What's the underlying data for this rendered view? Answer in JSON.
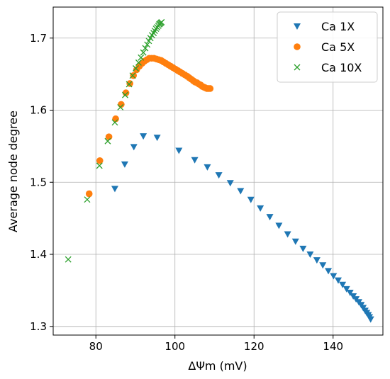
{
  "chart_data": {
    "type": "scatter",
    "title": "",
    "xlabel": "ΔΨm (mV)",
    "ylabel": "Average node degree",
    "xlim": [
      69.2,
      152.6
    ],
    "ylim": [
      1.288,
      1.743
    ],
    "x_ticks": [
      80,
      100,
      120,
      140
    ],
    "y_ticks": [
      1.3,
      1.4,
      1.5,
      1.6,
      1.7
    ],
    "x_tick_labels": [
      "80",
      "100",
      "120",
      "140"
    ],
    "y_tick_labels": [
      "1.3",
      "1.4",
      "1.5",
      "1.6",
      "1.7"
    ],
    "grid": true,
    "legend_position": "top-right",
    "series": [
      {
        "name": "Ca 1X",
        "marker": "triangle-down",
        "color": "#1f77b4",
        "x": [
          84.8,
          87.3,
          89.6,
          92.0,
          95.5,
          101.0,
          105.0,
          108.2,
          111.1,
          114.0,
          116.6,
          119.2,
          121.6,
          124.0,
          126.3,
          128.5,
          130.5,
          132.4,
          134.2,
          135.9,
          137.4,
          138.8,
          140.1,
          141.3,
          142.4,
          143.4,
          144.3,
          145.1,
          145.8,
          146.5,
          147.1,
          147.6,
          148.1,
          148.5,
          148.9,
          149.2,
          149.5
        ],
        "y": [
          1.491,
          1.525,
          1.549,
          1.564,
          1.562,
          1.544,
          1.531,
          1.521,
          1.51,
          1.499,
          1.488,
          1.476,
          1.464,
          1.452,
          1.44,
          1.428,
          1.418,
          1.408,
          1.4,
          1.392,
          1.385,
          1.377,
          1.37,
          1.364,
          1.358,
          1.352,
          1.347,
          1.342,
          1.338,
          1.334,
          1.33,
          1.326,
          1.322,
          1.319,
          1.316,
          1.313,
          1.31
        ]
      },
      {
        "name": "Ca 5X",
        "marker": "circle",
        "color": "#ff7f0e",
        "x": [
          78.3,
          81.0,
          83.3,
          85.0,
          86.4,
          87.6,
          88.6,
          89.5,
          90.3,
          91.0,
          91.7,
          92.3,
          92.9,
          93.5,
          94.1,
          94.7,
          95.3,
          95.9,
          96.5,
          97.1,
          97.7,
          98.3,
          98.9,
          99.5,
          100.1,
          100.7,
          101.3,
          101.9,
          102.5,
          103.1,
          103.6,
          104.1,
          104.6,
          105.1,
          105.6,
          106.1,
          106.5,
          106.9,
          107.3,
          107.7,
          108.1,
          108.5,
          108.9
        ],
        "y": [
          1.484,
          1.53,
          1.563,
          1.588,
          1.608,
          1.624,
          1.637,
          1.648,
          1.656,
          1.661,
          1.665,
          1.668,
          1.67,
          1.672,
          1.672,
          1.672,
          1.671,
          1.67,
          1.669,
          1.667,
          1.665,
          1.663,
          1.661,
          1.659,
          1.657,
          1.655,
          1.653,
          1.651,
          1.649,
          1.647,
          1.645,
          1.643,
          1.641,
          1.639,
          1.638,
          1.636,
          1.635,
          1.633,
          1.632,
          1.631,
          1.63,
          1.63,
          1.63
        ]
      },
      {
        "name": "Ca 10X",
        "marker": "x",
        "color": "#2ca02c",
        "x": [
          73.0,
          77.8,
          80.9,
          83.0,
          84.8,
          86.2,
          87.4,
          88.4,
          89.3,
          90.1,
          90.8,
          91.4,
          92.0,
          92.5,
          93.0,
          93.4,
          93.8,
          94.2,
          94.6,
          94.9,
          95.2,
          95.5,
          95.8,
          96.0,
          96.2,
          96.4,
          96.6
        ],
        "y": [
          1.393,
          1.476,
          1.523,
          1.557,
          1.583,
          1.604,
          1.621,
          1.636,
          1.648,
          1.658,
          1.666,
          1.673,
          1.68,
          1.686,
          1.691,
          1.696,
          1.7,
          1.704,
          1.707,
          1.71,
          1.713,
          1.715,
          1.717,
          1.719,
          1.72,
          1.721,
          1.722
        ]
      }
    ]
  }
}
